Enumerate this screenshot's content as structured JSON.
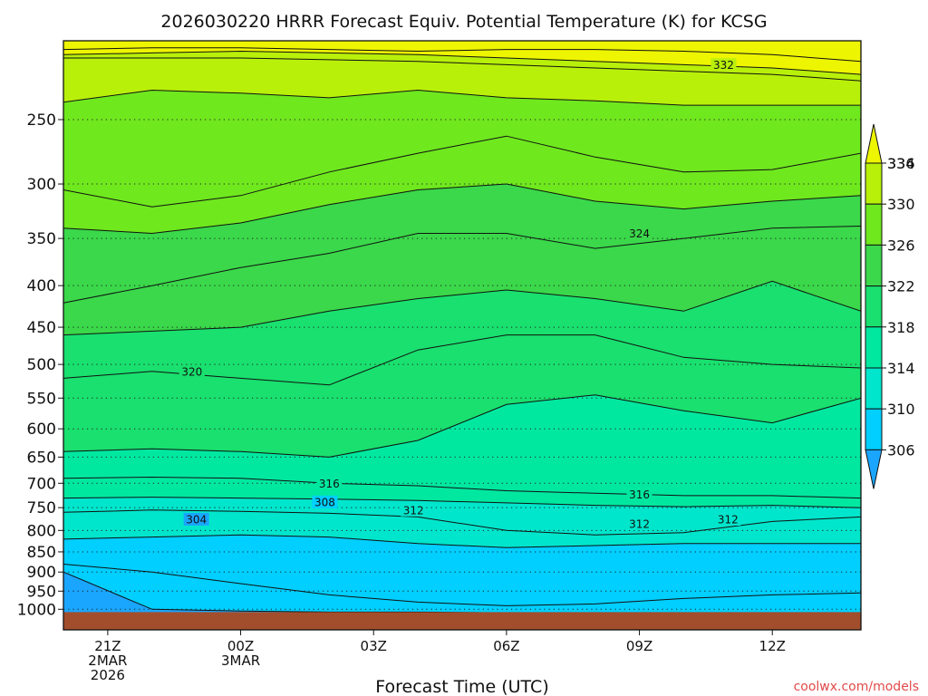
{
  "chart_data": {
    "type": "heatmap",
    "title": "2026030220 HRRR Forecast Equiv. Potential Temperature (K) for KCSG",
    "xlabel": "Forecast Time (UTC)",
    "ylabel": "",
    "y_axis": {
      "scale": "log",
      "reversed": true,
      "range": [
        200,
        1060
      ],
      "ticks": [
        250,
        300,
        350,
        400,
        450,
        500,
        550,
        600,
        650,
        700,
        750,
        800,
        850,
        900,
        950,
        1000
      ],
      "grid": "dotted"
    },
    "x_axis": {
      "range_hours_from_start": [
        -1,
        17
      ],
      "ticks": [
        {
          "hour": 0,
          "lines": [
            "21Z",
            "2MAR",
            "2026"
          ]
        },
        {
          "hour": 3,
          "lines": [
            "00Z",
            "3MAR"
          ]
        },
        {
          "hour": 6,
          "lines": [
            "03Z"
          ]
        },
        {
          "hour": 9,
          "lines": [
            "06Z"
          ]
        },
        {
          "hour": 12,
          "lines": [
            "09Z"
          ]
        },
        {
          "hour": 15,
          "lines": [
            "12Z"
          ]
        }
      ]
    },
    "colorbar": {
      "levels": [
        306,
        310,
        314,
        318,
        322,
        326,
        330,
        334,
        336
      ],
      "tick_labels": [
        "306",
        "310",
        "314",
        "318",
        "322",
        "326",
        "330",
        "334",
        "336"
      ],
      "colors": [
        "#1aa6ff",
        "#00cfff",
        "#00e6cc",
        "#00e8a0",
        "#19e06e",
        "#3ad84a",
        "#6fe81e",
        "#b9f00a",
        "#eef500"
      ],
      "extend": "both"
    },
    "columns_hours": [
      -1,
      1,
      3,
      5,
      7,
      9,
      11,
      13,
      15,
      17
    ],
    "contours": [
      {
        "level": 336,
        "p": [
          205,
          204,
          204,
          205,
          206,
          205,
          205,
          206,
          208,
          212
        ]
      },
      {
        "level": 334,
        "p": [
          208,
          207,
          206,
          207,
          208,
          210,
          212,
          214,
          216,
          220
        ]
      },
      {
        "level": 332,
        "p": [
          210,
          210,
          210,
          211,
          212,
          214,
          216,
          218,
          220,
          224
        ]
      },
      {
        "level": 330,
        "p": [
          238,
          230,
          232,
          235,
          230,
          235,
          237,
          240,
          240,
          240
        ]
      },
      {
        "level": 328,
        "p": [
          305,
          320,
          310,
          290,
          275,
          262,
          278,
          290,
          288,
          275
        ]
      },
      {
        "level": 326,
        "p": [
          340,
          345,
          335,
          318,
          305,
          300,
          315,
          322,
          315,
          310
        ]
      },
      {
        "level": 324,
        "p": [
          420,
          400,
          380,
          365,
          345,
          345,
          360,
          350,
          340,
          338
        ]
      },
      {
        "level": 322,
        "p": [
          460,
          455,
          450,
          430,
          415,
          405,
          415,
          430,
          395,
          430
        ]
      },
      {
        "level": 320,
        "p": [
          520,
          510,
          520,
          530,
          480,
          460,
          460,
          490,
          500,
          505
        ]
      },
      {
        "level": 318,
        "p": [
          640,
          635,
          640,
          650,
          620,
          560,
          545,
          570,
          590,
          550
        ]
      },
      {
        "level": 316,
        "p": [
          690,
          688,
          690,
          700,
          705,
          715,
          720,
          725,
          725,
          730
        ]
      },
      {
        "level": 314,
        "p": [
          730,
          728,
          730,
          732,
          735,
          740,
          745,
          748,
          745,
          750
        ]
      },
      {
        "level": 312,
        "p": [
          760,
          755,
          758,
          762,
          770,
          800,
          810,
          805,
          780,
          770
        ]
      },
      {
        "level": 310,
        "p": [
          820,
          815,
          810,
          815,
          830,
          840,
          835,
          830,
          830,
          830
        ]
      },
      {
        "level": 308,
        "p": [
          880,
          900,
          930,
          960,
          980,
          990,
          985,
          970,
          960,
          955
        ]
      },
      {
        "level": 306,
        "p": [
          900,
          1000,
          1005,
          1008,
          1008,
          1010,
          1010,
          1012,
          1012,
          1012
        ]
      }
    ],
    "contour_labels": [
      {
        "text": "332",
        "hour": 13.9,
        "p": 214
      },
      {
        "text": "324",
        "hour": 12.0,
        "p": 345
      },
      {
        "text": "320",
        "hour": 1.9,
        "p": 510
      },
      {
        "text": "316",
        "hour": 5.0,
        "p": 700
      },
      {
        "text": "316",
        "hour": 12.0,
        "p": 722
      },
      {
        "text": "312",
        "hour": 6.9,
        "p": 755
      },
      {
        "text": "312",
        "hour": 12.0,
        "p": 785
      },
      {
        "text": "312",
        "hour": 14.0,
        "p": 775
      },
      {
        "text": "308",
        "hour": 4.9,
        "p": 738
      },
      {
        "text": "304",
        "hour": 2.0,
        "p": 775
      }
    ],
    "ground_pressure": 1008,
    "ground_color": "#a24e2c",
    "grid": true,
    "legend": "right"
  },
  "credit": "coolwx.com/models"
}
